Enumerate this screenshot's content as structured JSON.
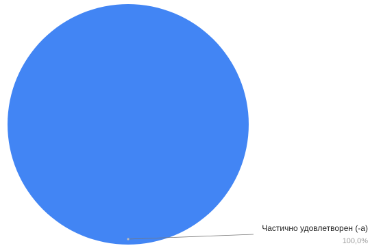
{
  "chart_data": {
    "type": "pie",
    "slices": [
      {
        "label": "Частично удовлетворен (-а)",
        "value": 100,
        "display": "100,0%",
        "color": "#4285f4"
      }
    ],
    "legend": "none",
    "leader_line_color": "#777777"
  }
}
